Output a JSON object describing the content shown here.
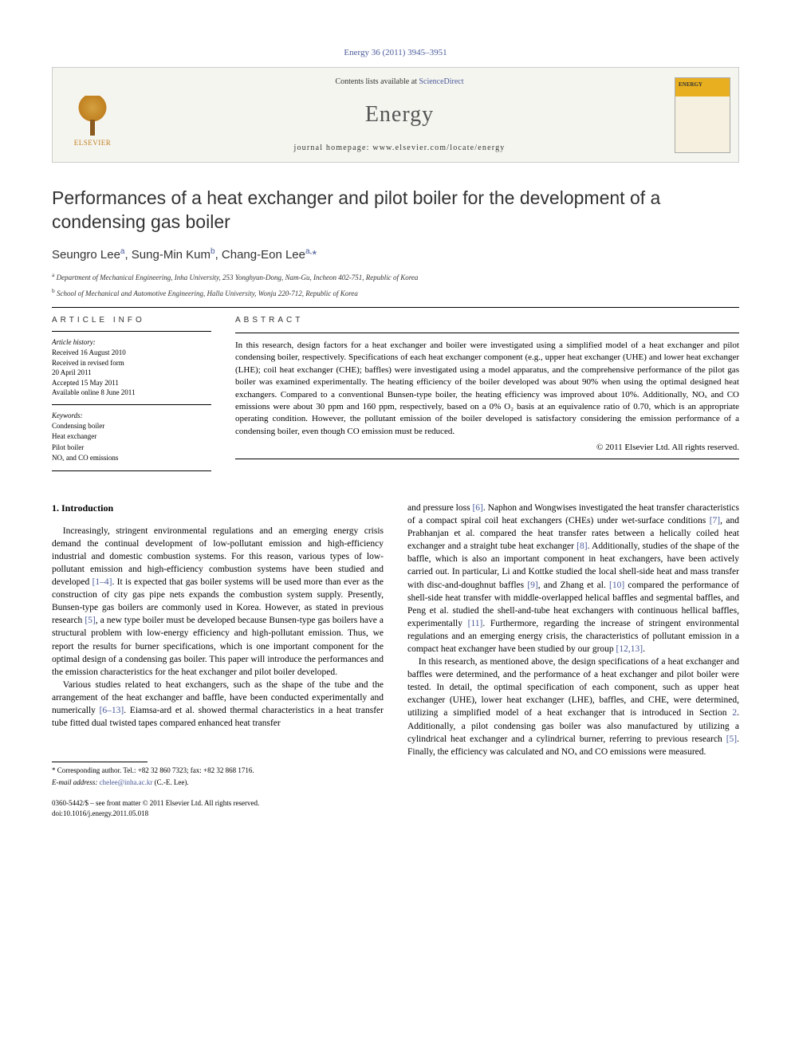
{
  "header": {
    "citation": "Energy 36 (2011) 3945–3951",
    "contents_prefix": "Contents lists available at ",
    "contents_link": "ScienceDirect",
    "journal_name": "Energy",
    "homepage_prefix": "journal homepage: ",
    "homepage_url": "www.elsevier.com/locate/energy",
    "publisher": "ELSEVIER",
    "cover_label": "ENERGY"
  },
  "title": "Performances of a heat exchanger and pilot boiler for the development of a condensing gas boiler",
  "authors_html": "Seungro Lee<sup>a</sup>, Sung-Min Kum<sup>b</sup>, Chang-Eon Lee<sup>a,</sup><span class='asterisk'>*</span>",
  "affiliations": [
    {
      "sup": "a",
      "text": "Department of Mechanical Engineering, Inha University, 253 Yonghyun-Dong, Nam-Gu, Incheon 402-751, Republic of Korea"
    },
    {
      "sup": "b",
      "text": "School of Mechanical and Automotive Engineering, Halla University, Wonju 220-712, Republic of Korea"
    }
  ],
  "article_info": {
    "header": "ARTICLE INFO",
    "history_label": "Article history:",
    "history": [
      "Received 16 August 2010",
      "Received in revised form",
      "20 April 2011",
      "Accepted 15 May 2011",
      "Available online 8 June 2011"
    ],
    "keywords_label": "Keywords:",
    "keywords": [
      "Condensing boiler",
      "Heat exchanger",
      "Pilot boiler",
      "NOₓ and CO emissions"
    ]
  },
  "abstract": {
    "header": "ABSTRACT",
    "text": "In this research, design factors for a heat exchanger and boiler were investigated using a simplified model of a heat exchanger and pilot condensing boiler, respectively. Specifications of each heat exchanger component (e.g., upper heat exchanger (UHE) and lower heat exchanger (LHE); coil heat exchanger (CHE); baffles) were investigated using a model apparatus, and the comprehensive performance of the pilot gas boiler was examined experimentally. The heating efficiency of the boiler developed was about 90% when using the optimal designed heat exchangers. Compared to a conventional Bunsen-type boiler, the heating efficiency was improved about 10%. Additionally, NOₓ and CO emissions were about 30 ppm and 160 ppm, respectively, based on a 0% O₂ basis at an equivalence ratio of 0.70, which is an appropriate operating condition. However, the pollutant emission of the boiler developed is satisfactory considering the emission performance of a condensing boiler, even though CO emission must be reduced.",
    "copyright": "© 2011 Elsevier Ltd. All rights reserved."
  },
  "body": {
    "section_heading": "1. Introduction",
    "left_paragraphs": [
      "Increasingly, stringent environmental regulations and an emerging energy crisis demand the continual development of low-pollutant emission and high-efficiency industrial and domestic combustion systems. For this reason, various types of low-pollutant emission and high-efficiency combustion systems have been studied and developed <a class='ref-link' href='#'>[1–4]</a>. It is expected that gas boiler systems will be used more than ever as the construction of city gas pipe nets expands the combustion system supply. Presently, Bunsen-type gas boilers are commonly used in Korea. However, as stated in previous research <a class='ref-link' href='#'>[5]</a>, a new type boiler must be developed because Bunsen-type gas boilers have a structural problem with low-energy efficiency and high-pollutant emission. Thus, we report the results for burner specifications, which is one important component for the optimal design of a condensing gas boiler. This paper will introduce the performances and the emission characteristics for the heat exchanger and pilot boiler developed.",
      "Various studies related to heat exchangers, such as the shape of the tube and the arrangement of the heat exchanger and baffle, have been conducted experimentally and numerically <a class='ref-link' href='#'>[6–13]</a>. Eiamsa-ard et al. showed thermal characteristics in a heat transfer tube fitted dual twisted tapes compared enhanced heat transfer"
    ],
    "right_paragraphs": [
      "and pressure loss <a class='ref-link' href='#'>[6]</a>. Naphon and Wongwises investigated the heat transfer characteristics of a compact spiral coil heat exchangers (CHEs) under wet-surface conditions <a class='ref-link' href='#'>[7]</a>, and Prabhanjan et al. compared the heat transfer rates between a helically coiled heat exchanger and a straight tube heat exchanger <a class='ref-link' href='#'>[8]</a>. Additionally, studies of the shape of the baffle, which is also an important component in heat exchangers, have been actively carried out. In particular, Li and Kottke studied the local shell-side heat and mass transfer with disc-and-doughnut baffles <a class='ref-link' href='#'>[9]</a>, and Zhang et al. <a class='ref-link' href='#'>[10]</a> compared the performance of shell-side heat transfer with middle-overlapped helical baffles and segmental baffles, and Peng et al. studied the shell-and-tube heat exchangers with continuous hellical baffles, experimentally <a class='ref-link' href='#'>[11]</a>. Furthermore, regarding the increase of stringent environmental regulations and an emerging energy crisis, the characteristics of pollutant emission in a compact heat exchanger have been studied by our group <a class='ref-link' href='#'>[12,13]</a>.",
      "In this research, as mentioned above, the design specifications of a heat exchanger and baffles were determined, and the performance of a heat exchanger and pilot boiler were tested. In detail, the optimal specification of each component, such as upper heat exchanger (UHE), lower heat exchanger (LHE), baffles, and CHE, were determined, utilizing a simplified model of a heat exchanger that is introduced in Section <a class='ref-link' href='#'>2</a>. Additionally, a pilot condensing gas boiler was also manufactured by utilizing a cylindrical heat exchanger and a cylindrical burner, referring to previous research <a class='ref-link' href='#'>[5]</a>. Finally, the efficiency was calculated and NOₓ and CO emissions were measured."
    ]
  },
  "footer": {
    "corresp_label": "* Corresponding author. Tel.: +82 32 860 7323; fax: +82 32 868 1716.",
    "email_label": "E-mail address: ",
    "email": "chelee@inha.ac.kr",
    "email_suffix": " (C.-E. Lee).",
    "issn_line": "0360-5442/$ – see front matter © 2011 Elsevier Ltd. All rights reserved.",
    "doi_line": "doi:10.1016/j.energy.2011.05.018"
  }
}
